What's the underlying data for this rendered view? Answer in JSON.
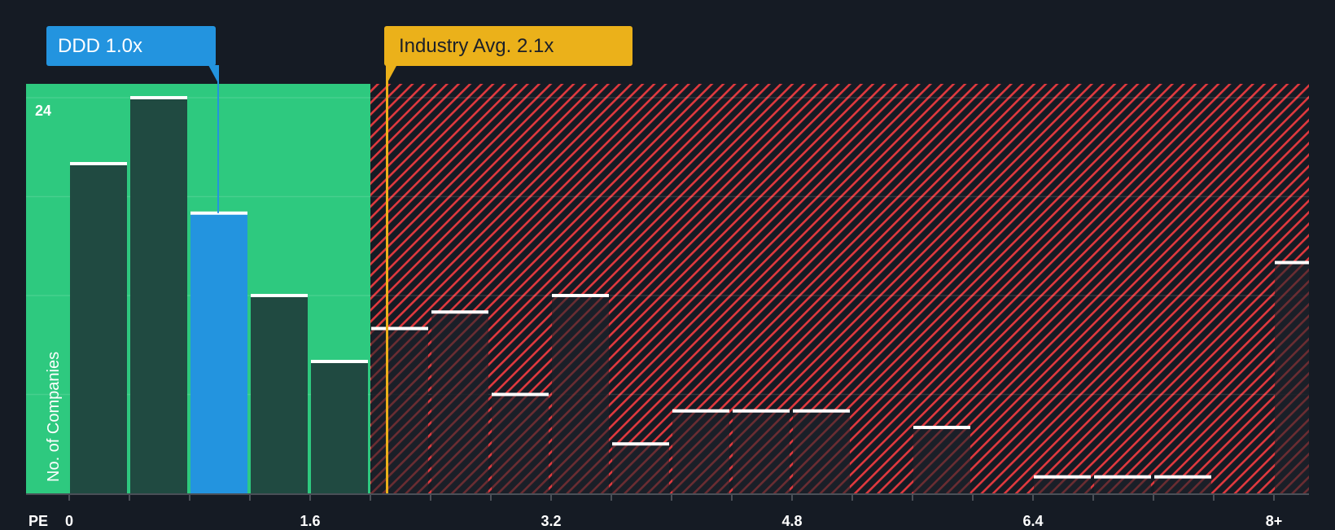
{
  "chart_data": {
    "type": "bar",
    "title": "",
    "xlabel": "PE",
    "ylabel": "No. of Companies",
    "x_tick_labels": [
      "0",
      "1.6",
      "3.2",
      "4.8",
      "6.4",
      "8+"
    ],
    "y_tick_labels": [
      "24"
    ],
    "ylim": [
      0,
      24
    ],
    "bin_width": 0.4,
    "categories": [
      "0-0.4",
      "0.4-0.8",
      "0.8-1.2",
      "1.2-1.6",
      "1.6-2.0",
      "2.0-2.4",
      "2.4-2.8",
      "2.8-3.2",
      "3.2-3.6",
      "3.6-4.0",
      "4.0-4.4",
      "4.4-4.8",
      "4.8-5.2",
      "5.2-5.6",
      "5.6-6.0",
      "6.0-6.4",
      "6.4-6.8",
      "6.8-7.2",
      "7.2-7.6",
      "7.6-8.0",
      "8+"
    ],
    "values": [
      20,
      24,
      17,
      12,
      8,
      10,
      11,
      6,
      12,
      3,
      5,
      5,
      5,
      0,
      4,
      0,
      1,
      1,
      1,
      0,
      14
    ],
    "highlight_bin_index": 2,
    "grid": true,
    "gridlines_at": [
      6,
      12,
      18,
      24
    ],
    "annotations": [
      {
        "label": "DDD 1.0x",
        "value": 1.0,
        "color": "#2394df"
      },
      {
        "label": "Industry Avg. 2.1x",
        "value": 2.1,
        "color": "#ebb11a"
      }
    ],
    "regions": [
      {
        "name": "undervalued",
        "from": 0,
        "to": 2.0,
        "color": "#2ec97f"
      },
      {
        "name": "overvalued",
        "from": 2.0,
        "to": "8+",
        "color": "#e0393e",
        "pattern": "diagonal-hatch"
      }
    ]
  },
  "labels": {
    "company_callout": "DDD 1.0x",
    "industry_callout": "Industry Avg. 2.1x",
    "y_axis": "No. of Companies",
    "y_max_tick": "24",
    "x_axis": "PE"
  },
  "colors": {
    "background": "#151b24",
    "green_zone": "#2ec97f",
    "bar_dark_green": "#204a41",
    "bar_highlight": "#2394df",
    "hatch_red": "#e0393e",
    "bar_dark_overvalued": "#1b2029",
    "industry_line": "#ebb11a",
    "bar_cap": "#ffffff"
  }
}
